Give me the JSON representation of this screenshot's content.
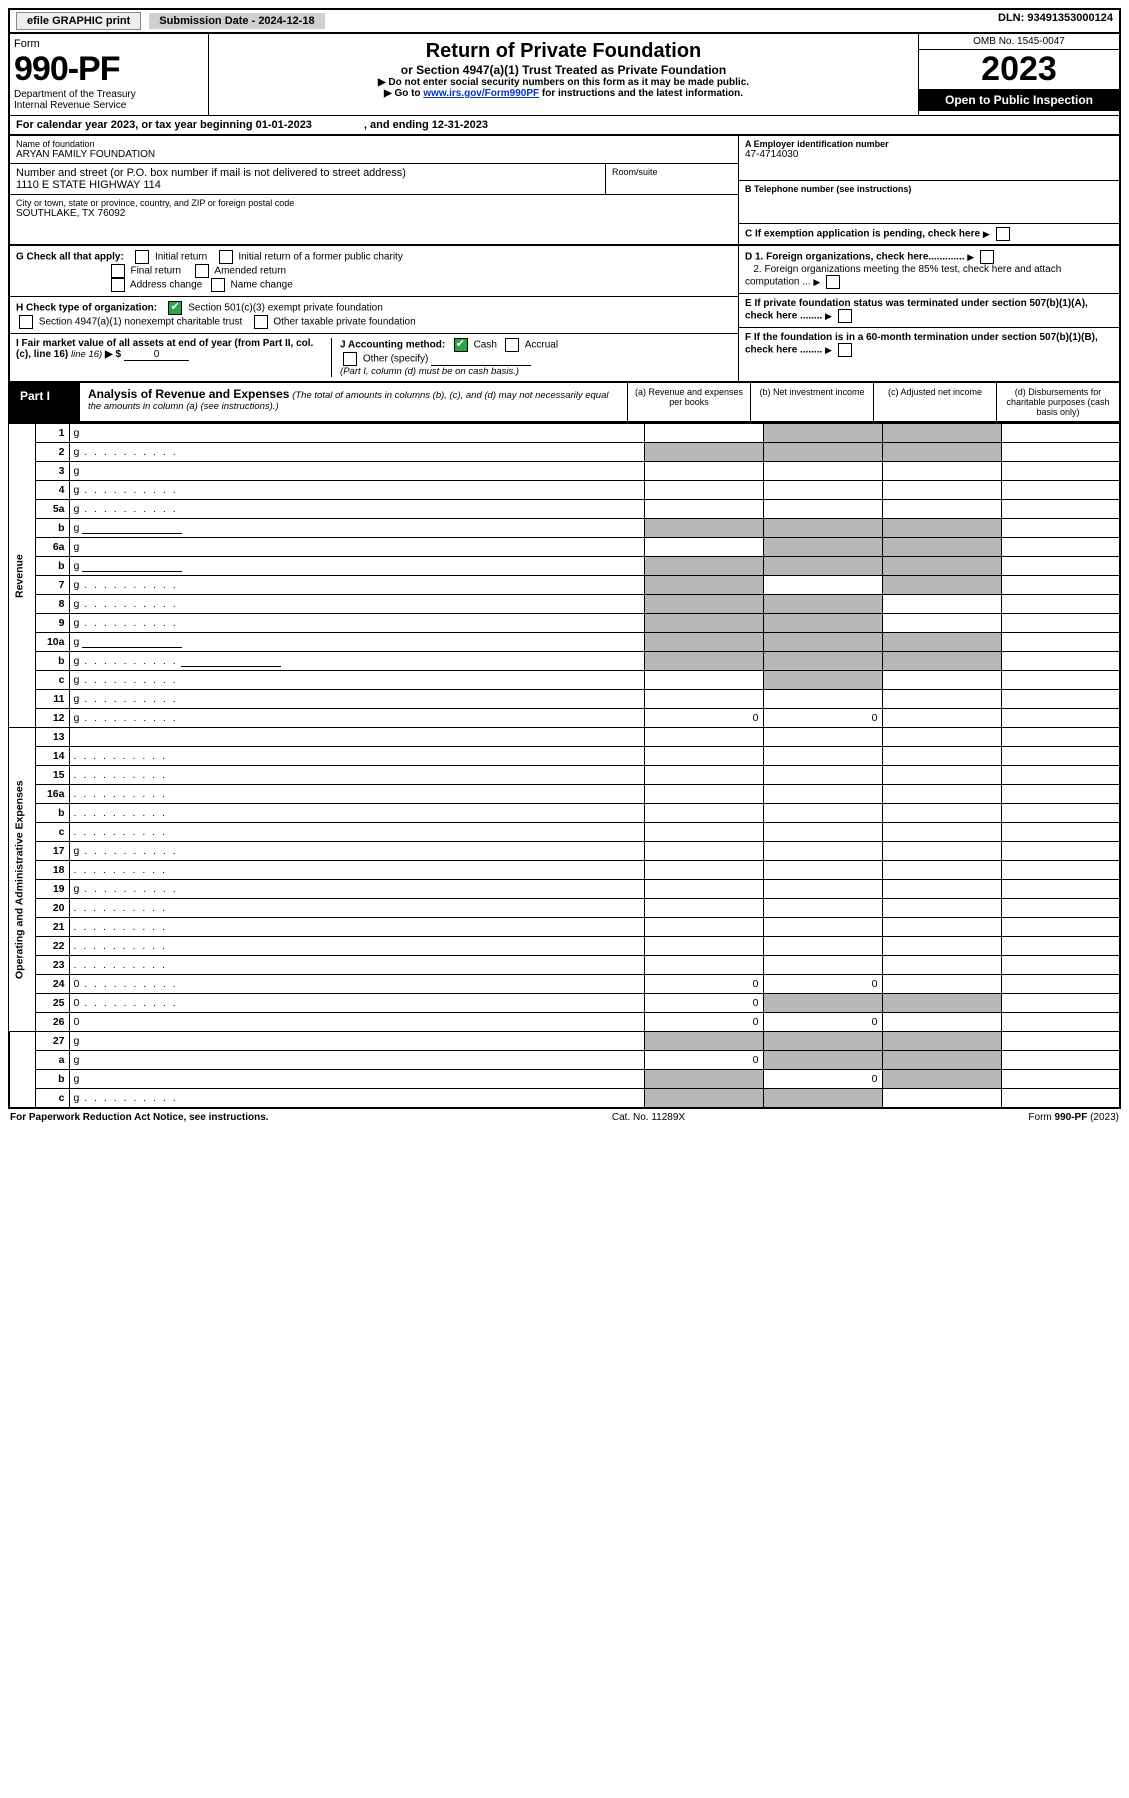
{
  "topbar": {
    "efile": "efile GRAPHIC print",
    "subdate_lbl": "Submission Date - 2024-12-18",
    "dln": "DLN: 93491353000124"
  },
  "header": {
    "form_word": "Form",
    "form_no": "990-PF",
    "dept": "Department of the Treasury",
    "irs": "Internal Revenue Service",
    "title": "Return of Private Foundation",
    "subtitle": "or Section 4947(a)(1) Trust Treated as Private Foundation",
    "instr1": "▶ Do not enter social security numbers on this form as it may be made public.",
    "instr2a": "▶ Go to ",
    "instr2_link": "www.irs.gov/Form990PF",
    "instr2b": " for instructions and the latest information.",
    "omb": "OMB No. 1545-0047",
    "year": "2023",
    "open": "Open to Public Inspection"
  },
  "calyear": {
    "prefix": "For calendar year 2023, or tax year beginning ",
    "begin": "01-01-2023",
    "mid": " , and ending ",
    "end": "12-31-2023"
  },
  "id": {
    "name_lbl": "Name of foundation",
    "name": "ARYAN FAMILY FOUNDATION",
    "addr_lbl": "Number and street (or P.O. box number if mail is not delivered to street address)",
    "addr": "1110 E STATE HIGHWAY 114",
    "room_lbl": "Room/suite",
    "city_lbl": "City or town, state or province, country, and ZIP or foreign postal code",
    "city": "SOUTHLAKE, TX  76092",
    "a_lbl": "A Employer identification number",
    "a_val": "47-4714030",
    "b_lbl": "B Telephone number (see instructions)",
    "c_lbl": "C If exemption application is pending, check here",
    "d1": "D 1. Foreign organizations, check here.............",
    "d2": "2. Foreign organizations meeting the 85% test, check here and attach computation ...",
    "e": "E  If private foundation status was terminated under section 507(b)(1)(A), check here ........",
    "f": "F  If the foundation is in a 60-month termination under section 507(b)(1)(B), check here ........"
  },
  "g": {
    "lbl": "G Check all that apply:",
    "o1": "Initial return",
    "o2": "Initial return of a former public charity",
    "o3": "Final return",
    "o4": "Amended return",
    "o5": "Address change",
    "o6": "Name change"
  },
  "h": {
    "lbl": "H Check type of organization:",
    "o1": "Section 501(c)(3) exempt private foundation",
    "o2": "Section 4947(a)(1) nonexempt charitable trust",
    "o3": "Other taxable private foundation"
  },
  "i": {
    "lbl": "I Fair market value of all assets at end of year (from Part II, col. (c), line 16)",
    "arrow": "▶ $",
    "val": "0"
  },
  "j": {
    "lbl": "J Accounting method:",
    "o1": "Cash",
    "o2": "Accrual",
    "o3": "Other (specify)",
    "note": "(Part I, column (d) must be on cash basis.)"
  },
  "part1": {
    "lbl": "Part I",
    "title": "Analysis of Revenue and Expenses",
    "note": " (The total of amounts in columns (b), (c), and (d) may not necessarily equal the amounts in column (a) (see instructions).)",
    "ca": "(a)   Revenue and expenses per books",
    "cb": "(b)   Net investment income",
    "cc": "(c)   Adjusted net income",
    "cd": "(d)   Disbursements for charitable purposes (cash basis only)"
  },
  "rev": [
    {
      "n": "1",
      "d": "g",
      "a": "",
      "b": "g",
      "c": "g"
    },
    {
      "n": "2",
      "d": "g",
      "dots": true,
      "a": "g",
      "b": "g",
      "c": "g"
    },
    {
      "n": "3",
      "d": "g",
      "a": "",
      "b": "",
      "c": ""
    },
    {
      "n": "4",
      "d": "g",
      "dots": true,
      "a": "",
      "b": "",
      "c": ""
    },
    {
      "n": "5a",
      "d": "g",
      "dots": true,
      "a": "",
      "b": "",
      "c": ""
    },
    {
      "n": "b",
      "d": "g",
      "under": true,
      "a": "g",
      "b": "g",
      "c": "g"
    },
    {
      "n": "6a",
      "d": "g",
      "a": "",
      "b": "g",
      "c": "g"
    },
    {
      "n": "b",
      "d": "g",
      "under": true,
      "a": "g",
      "b": "g",
      "c": "g"
    },
    {
      "n": "7",
      "d": "g",
      "dots": true,
      "a": "g",
      "b": "",
      "c": "g"
    },
    {
      "n": "8",
      "d": "g",
      "dots": true,
      "a": "g",
      "b": "g",
      "c": ""
    },
    {
      "n": "9",
      "d": "g",
      "dots": true,
      "a": "g",
      "b": "g",
      "c": ""
    },
    {
      "n": "10a",
      "d": "g",
      "under": true,
      "a": "g",
      "b": "g",
      "c": "g"
    },
    {
      "n": "b",
      "d": "g",
      "dots": true,
      "under": true,
      "a": "g",
      "b": "g",
      "c": "g"
    },
    {
      "n": "c",
      "d": "g",
      "dots": true,
      "a": "",
      "b": "g",
      "c": ""
    },
    {
      "n": "11",
      "d": "g",
      "dots": true,
      "a": "",
      "b": "",
      "c": ""
    },
    {
      "n": "12",
      "d": "g",
      "dots": true,
      "a": "0",
      "b": "0",
      "c": ""
    }
  ],
  "exp": [
    {
      "n": "13",
      "d": "",
      "a": "",
      "b": "",
      "c": ""
    },
    {
      "n": "14",
      "d": "",
      "dots": true,
      "a": "",
      "b": "",
      "c": ""
    },
    {
      "n": "15",
      "d": "",
      "dots": true,
      "a": "",
      "b": "",
      "c": ""
    },
    {
      "n": "16a",
      "d": "",
      "dots": true,
      "a": "",
      "b": "",
      "c": ""
    },
    {
      "n": "b",
      "d": "",
      "dots": true,
      "a": "",
      "b": "",
      "c": ""
    },
    {
      "n": "c",
      "d": "",
      "dots": true,
      "a": "",
      "b": "",
      "c": ""
    },
    {
      "n": "17",
      "d": "g",
      "dots": true,
      "a": "",
      "b": "",
      "c": ""
    },
    {
      "n": "18",
      "d": "",
      "dots": true,
      "a": "",
      "b": "",
      "c": ""
    },
    {
      "n": "19",
      "d": "g",
      "dots": true,
      "a": "",
      "b": "",
      "c": ""
    },
    {
      "n": "20",
      "d": "",
      "dots": true,
      "a": "",
      "b": "",
      "c": ""
    },
    {
      "n": "21",
      "d": "",
      "dots": true,
      "a": "",
      "b": "",
      "c": ""
    },
    {
      "n": "22",
      "d": "",
      "dots": true,
      "a": "",
      "b": "",
      "c": ""
    },
    {
      "n": "23",
      "d": "",
      "dots": true,
      "a": "",
      "b": "",
      "c": ""
    },
    {
      "n": "24",
      "d": "0",
      "dots": true,
      "a": "0",
      "b": "0",
      "c": ""
    },
    {
      "n": "25",
      "d": "0",
      "dots": true,
      "a": "0",
      "b": "g",
      "c": "g"
    },
    {
      "n": "26",
      "d": "0",
      "a": "0",
      "b": "0",
      "c": ""
    }
  ],
  "net": [
    {
      "n": "27",
      "d": "g",
      "a": "g",
      "b": "g",
      "c": "g"
    },
    {
      "n": "a",
      "d": "g",
      "a": "0",
      "b": "g",
      "c": "g"
    },
    {
      "n": "b",
      "d": "g",
      "a": "g",
      "b": "0",
      "c": "g"
    },
    {
      "n": "c",
      "d": "g",
      "dots": true,
      "a": "g",
      "b": "g",
      "c": ""
    }
  ],
  "side": {
    "rev": "Revenue",
    "exp": "Operating and Administrative Expenses"
  },
  "footer": {
    "left": "For Paperwork Reduction Act Notice, see instructions.",
    "mid": "Cat. No. 11289X",
    "right": "Form 990-PF (2023)"
  }
}
